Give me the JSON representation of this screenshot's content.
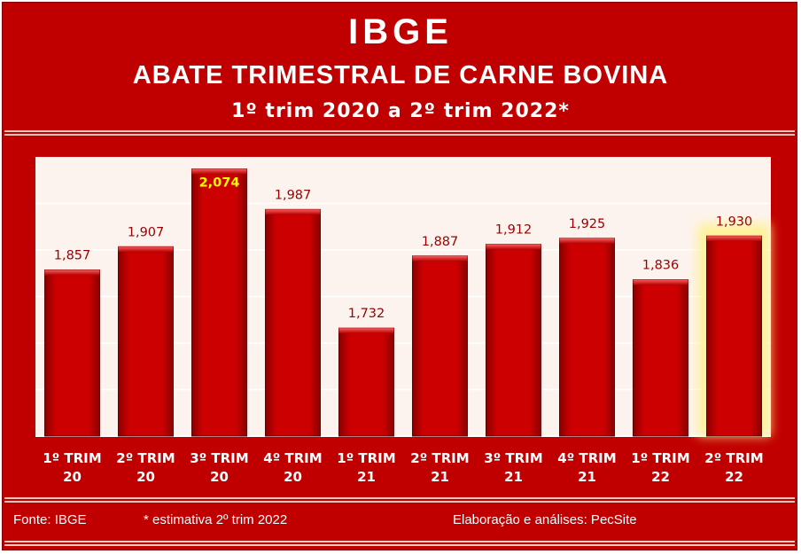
{
  "header": {
    "title": "IBGE",
    "subtitle": "ABATE TRIMESTRAL DE CARNE BOVINA",
    "period": "1º trim 2020 a 2º trim 2022*"
  },
  "footer": {
    "source": "Fonte: IBGE",
    "note": "* estimativa 2º trim 2022",
    "credit": "Elaboração e análises: PecSite"
  },
  "colors": {
    "background": "#c00000",
    "bar": "#cc0000",
    "plot_area": "#fdf3ee",
    "label_text": "#990000",
    "highlight_label": "#ffff00",
    "highlight_glow": "#fff28a"
  },
  "chart_data": {
    "type": "bar",
    "categories": [
      [
        "1º TRIM",
        "20"
      ],
      [
        "2º TRIM",
        "20"
      ],
      [
        "3º TRIM",
        "20"
      ],
      [
        "4º TRIM",
        "20"
      ],
      [
        "1º TRIM",
        "21"
      ],
      [
        "2º TRIM",
        "21"
      ],
      [
        "3º TRIM",
        "21"
      ],
      [
        "4º TRIM",
        "21"
      ],
      [
        "1º TRIM",
        "22"
      ],
      [
        "2º TRIM",
        "22"
      ]
    ],
    "values": [
      1857,
      1907,
      2074,
      1987,
      1732,
      1887,
      1912,
      1925,
      1836,
      1930
    ],
    "data_labels": [
      "1,857",
      "1,907",
      "2,074",
      "1,987",
      "1,732",
      "1,887",
      "1,912",
      "1,925",
      "1,836",
      "1,930"
    ],
    "ylim": [
      1500,
      2100
    ],
    "gridlines": [
      1600,
      1700,
      1800,
      1900,
      2000
    ],
    "grid": true,
    "legend": "none",
    "highlight_label_index": 2,
    "highlight_glow_index": 9,
    "xlabel": "",
    "ylabel": ""
  }
}
